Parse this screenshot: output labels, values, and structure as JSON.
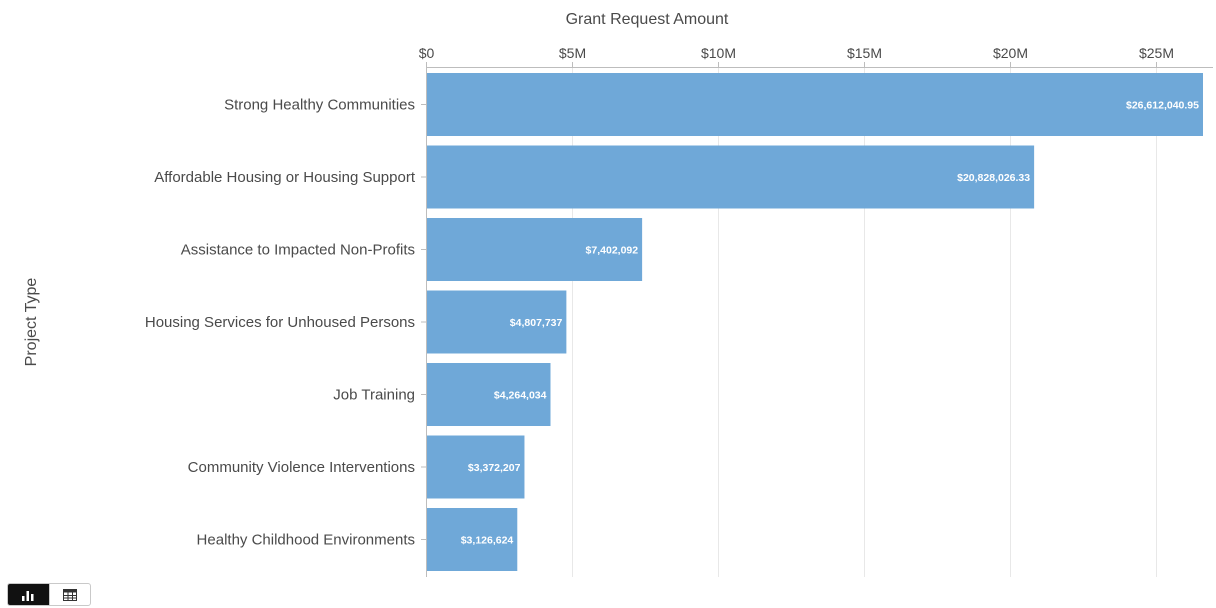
{
  "chart_data": {
    "type": "bar",
    "orientation": "horizontal",
    "title": "Grant Request Amount",
    "xlabel": "Grant Request Amount",
    "ylabel": "Project Type",
    "categories": [
      "Strong Healthy Communities",
      "Affordable Housing or Housing Support",
      "Assistance to Impacted Non-Profits",
      "Housing Services for Unhoused Persons",
      "Job Training",
      "Community Violence Interventions",
      "Healthy Childhood Environments"
    ],
    "values": [
      26612040.95,
      20828026.33,
      7402092,
      4807737,
      4264034,
      3372207,
      3126624
    ],
    "data_labels": [
      "$26,612,040.95",
      "$20,828,026.33",
      "$7,402,092",
      "$4,807,737",
      "$4,264,034",
      "$3,372,207",
      "$3,126,624"
    ],
    "xlim": [
      0,
      26612040.95
    ],
    "xticks": [
      0,
      5000000,
      10000000,
      15000000,
      20000000,
      25000000
    ],
    "xtick_labels": [
      "$0",
      "$5M",
      "$10M",
      "$15M",
      "$20M",
      "$25M"
    ],
    "axis_position": "top",
    "grid": true,
    "legend": "none",
    "colors": {
      "bar": "#6fa8d8",
      "grid": "#e8e8e8",
      "axis": "#bdbdbd",
      "text": "#4a4a4a",
      "value_label": "#ffffff"
    }
  },
  "view_toggle": {
    "options": [
      {
        "name": "chart-view",
        "icon": "bar-chart-icon",
        "active": true
      },
      {
        "name": "table-view",
        "icon": "table-grid-icon",
        "active": false
      }
    ]
  }
}
